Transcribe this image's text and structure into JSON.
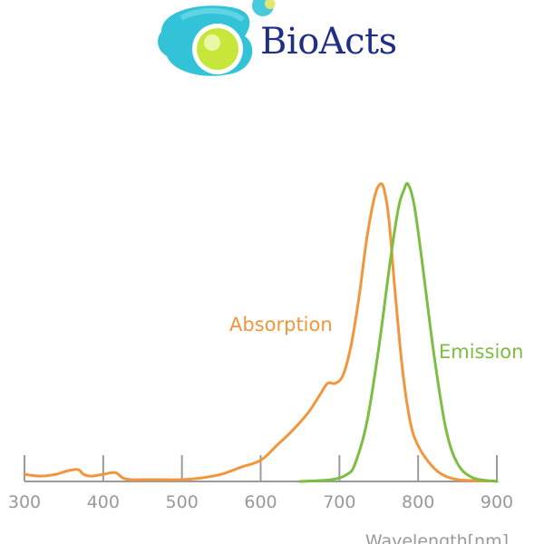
{
  "logo": {
    "text": "BioActs",
    "colors": {
      "blob": "#28c0d6",
      "ball": "#c6e63a",
      "text": "#1f2f86"
    }
  },
  "chart_data": {
    "type": "line",
    "xlabel": "Wavelength[nm]",
    "xlim": [
      300,
      900
    ],
    "ylim": [
      0,
      1
    ],
    "xticks": [
      300,
      400,
      500,
      600,
      700,
      800,
      900
    ],
    "grid": false,
    "series": [
      {
        "name": "Absorption",
        "color": "#f0963c",
        "x": [
          300,
          320,
          340,
          355,
          368,
          375,
          385,
          400,
          415,
          425,
          435,
          450,
          475,
          500,
          525,
          550,
          575,
          600,
          620,
          640,
          660,
          675,
          685,
          695,
          705,
          715,
          725,
          735,
          745,
          752,
          757,
          763,
          770,
          780,
          790,
          800,
          815,
          830,
          850,
          880,
          900
        ],
        "y": [
          0.024,
          0.018,
          0.024,
          0.036,
          0.04,
          0.024,
          0.018,
          0.024,
          0.03,
          0.012,
          0.006,
          0.006,
          0.006,
          0.006,
          0.012,
          0.024,
          0.048,
          0.071,
          0.12,
          0.17,
          0.23,
          0.29,
          0.33,
          0.33,
          0.36,
          0.46,
          0.62,
          0.82,
          0.96,
          1.0,
          0.98,
          0.88,
          0.66,
          0.38,
          0.2,
          0.12,
          0.06,
          0.024,
          0.006,
          0.002,
          0.001
        ]
      },
      {
        "name": "Emission",
        "color": "#7cbd42",
        "x": [
          650,
          690,
          710,
          720,
          735,
          750,
          765,
          775,
          782,
          787,
          795,
          805,
          820,
          835,
          850,
          870,
          900
        ],
        "y": [
          0,
          0.006,
          0.024,
          0.06,
          0.2,
          0.45,
          0.75,
          0.92,
          0.98,
          1.0,
          0.93,
          0.74,
          0.43,
          0.18,
          0.06,
          0.012,
          0
        ]
      }
    ]
  }
}
